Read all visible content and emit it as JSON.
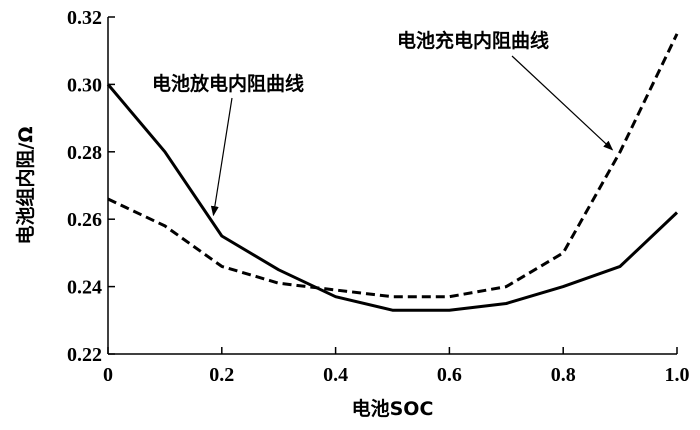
{
  "chart_data": {
    "type": "line",
    "xlabel": "电池SOC",
    "ylabel": "电池组内阻/Ω",
    "xlim": [
      0,
      1.0
    ],
    "ylim": [
      0.22,
      0.32
    ],
    "xticks": [
      "0",
      "0.2",
      "0.4",
      "0.6",
      "0.8",
      "1.0"
    ],
    "yticks": [
      "0.22",
      "0.24",
      "0.26",
      "0.28",
      "0.30",
      "0.32"
    ],
    "grid": false,
    "x": [
      0,
      0.1,
      0.2,
      0.3,
      0.4,
      0.5,
      0.6,
      0.7,
      0.8,
      0.9,
      1.0
    ],
    "series": [
      {
        "name": "电池放电内阻曲线",
        "style": "solid",
        "color": "#000000",
        "values": [
          0.3,
          0.28,
          0.255,
          0.245,
          0.237,
          0.233,
          0.233,
          0.235,
          0.24,
          0.246,
          0.262
        ]
      },
      {
        "name": "电池充电内阻曲线",
        "style": "dashed",
        "color": "#000000",
        "values": [
          0.266,
          0.258,
          0.246,
          0.241,
          0.239,
          0.237,
          0.237,
          0.24,
          0.25,
          0.28,
          0.315
        ]
      }
    ],
    "annotations": [
      {
        "text": "电池放电内阻曲线",
        "points_to": {
          "x": 0.18,
          "y": 0.26
        }
      },
      {
        "text": "电池充电内阻曲线",
        "points_to": {
          "x": 0.89,
          "y": 0.28
        }
      }
    ]
  }
}
